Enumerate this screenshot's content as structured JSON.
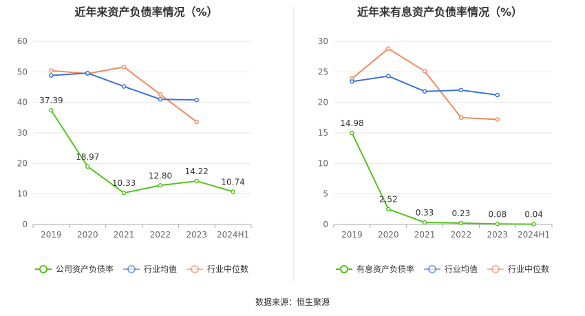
{
  "source_text": "数据来源：恒生聚源",
  "chart_data": [
    {
      "type": "line",
      "title": "近年来资产负债率情况（%）",
      "categories": [
        "2019",
        "2020",
        "2021",
        "2022",
        "2023",
        "2024H1"
      ],
      "ylim": [
        0,
        60
      ],
      "yticks": [
        0,
        10,
        20,
        30,
        40,
        50,
        60
      ],
      "grid": true,
      "legend": "bottom",
      "series": [
        {
          "name": "公司资产负债率",
          "color": "#52c41a",
          "values": [
            37.39,
            18.97,
            10.33,
            12.8,
            14.22,
            10.74
          ],
          "labels": [
            "37.39",
            "18.97",
            "10.33",
            "12.80",
            "14.22",
            "10.74"
          ]
        },
        {
          "name": "行业均值",
          "color": "#3a73d9",
          "values": [
            48.8,
            49.6,
            45.2,
            41.0,
            40.8,
            null
          ]
        },
        {
          "name": "行业中位数",
          "color": "#f08a5d",
          "values": [
            50.4,
            49.4,
            51.6,
            42.6,
            33.6,
            null
          ]
        }
      ]
    },
    {
      "type": "line",
      "title": "近年来有息资产负债率情况（%）",
      "categories": [
        "2019",
        "2020",
        "2021",
        "2022",
        "2023",
        "2024H1"
      ],
      "ylim": [
        0,
        30
      ],
      "yticks": [
        0,
        5,
        10,
        15,
        20,
        25,
        30
      ],
      "grid": true,
      "legend": "bottom",
      "series": [
        {
          "name": "有息资产负债率",
          "color": "#52c41a",
          "values": [
            14.98,
            2.52,
            0.33,
            0.23,
            0.08,
            0.04
          ],
          "labels": [
            "14.98",
            "2.52",
            "0.33",
            "0.23",
            "0.08",
            "0.04"
          ]
        },
        {
          "name": "行业均值",
          "color": "#3a73d9",
          "values": [
            23.4,
            24.3,
            21.8,
            22.0,
            21.2,
            null
          ]
        },
        {
          "name": "行业中位数",
          "color": "#f08a5d",
          "values": [
            23.9,
            28.8,
            25.1,
            17.5,
            17.2,
            null
          ]
        }
      ]
    }
  ]
}
